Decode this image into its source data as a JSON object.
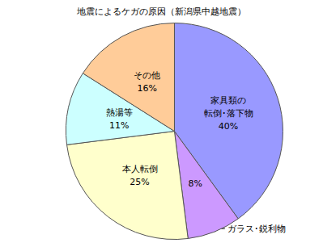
{
  "chart_data": {
    "type": "pie",
    "title": "地震によるケガの原因（新潟県中越地震）",
    "categories": [
      "家具類の\n転倒･落下物",
      "ガラス･鋭利物",
      "本人転倒",
      "熱湯等",
      "その他"
    ],
    "values": [
      40,
      8,
      25,
      11,
      16
    ],
    "value_labels": [
      "40%",
      "8%",
      "25%",
      "11%",
      "16%"
    ],
    "colors": [
      "#9999FF",
      "#CC99FF",
      "#FFFFCC",
      "#CCFFFF",
      "#FFCC99"
    ],
    "data_labels": true
  }
}
